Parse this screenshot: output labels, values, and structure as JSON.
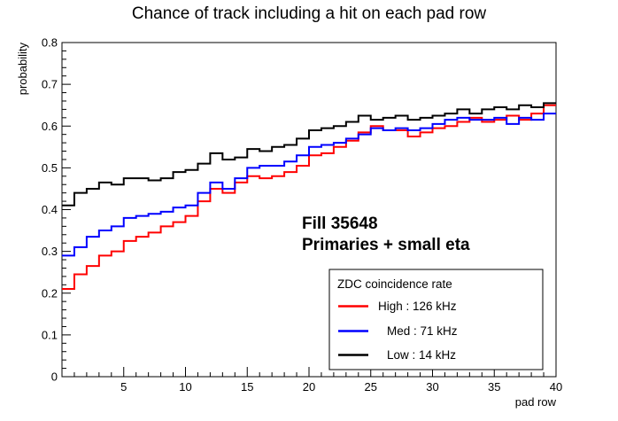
{
  "chart_data": {
    "type": "line",
    "title": "Chance of track including a hit on each pad row",
    "xlabel": "pad row",
    "ylabel": "probability",
    "xlim": [
      0,
      40
    ],
    "ylim": [
      0,
      0.8
    ],
    "x_ticks": [
      5,
      10,
      15,
      20,
      25,
      30,
      35,
      40
    ],
    "y_ticks": [
      0,
      0.1,
      0.2,
      0.3,
      0.4,
      0.5,
      0.6,
      0.7,
      0.8
    ],
    "y_tick_labels": [
      "0",
      "0.1",
      "0.2",
      "0.3",
      "0.4",
      "0.5",
      "0.6",
      "0.7",
      "0.8"
    ],
    "grid": false,
    "step": true,
    "x": [
      1,
      2,
      3,
      4,
      5,
      6,
      7,
      8,
      9,
      10,
      11,
      12,
      13,
      14,
      15,
      16,
      17,
      18,
      19,
      20,
      21,
      22,
      23,
      24,
      25,
      26,
      27,
      28,
      29,
      30,
      31,
      32,
      33,
      34,
      35,
      36,
      37,
      38,
      39,
      40
    ],
    "series": [
      {
        "name": "High : 126 kHz",
        "color": "#ff0000",
        "values": [
          0.21,
          0.245,
          0.265,
          0.29,
          0.3,
          0.325,
          0.335,
          0.345,
          0.36,
          0.37,
          0.385,
          0.42,
          0.45,
          0.44,
          0.465,
          0.48,
          0.475,
          0.48,
          0.49,
          0.505,
          0.53,
          0.535,
          0.55,
          0.565,
          0.585,
          0.6,
          0.59,
          0.59,
          0.575,
          0.585,
          0.595,
          0.6,
          0.61,
          0.62,
          0.61,
          0.615,
          0.625,
          0.615,
          0.63,
          0.65
        ]
      },
      {
        "name": "Med : 71 kHz",
        "color": "#0000ff",
        "values": [
          0.29,
          0.31,
          0.335,
          0.35,
          0.36,
          0.38,
          0.385,
          0.39,
          0.395,
          0.405,
          0.41,
          0.44,
          0.465,
          0.45,
          0.475,
          0.5,
          0.505,
          0.505,
          0.515,
          0.53,
          0.55,
          0.555,
          0.56,
          0.57,
          0.58,
          0.595,
          0.59,
          0.595,
          0.59,
          0.595,
          0.605,
          0.615,
          0.62,
          0.615,
          0.615,
          0.62,
          0.605,
          0.62,
          0.615,
          0.63
        ]
      },
      {
        "name": "Low : 14 kHz",
        "color": "#000000",
        "values": [
          0.41,
          0.44,
          0.45,
          0.465,
          0.46,
          0.475,
          0.475,
          0.47,
          0.475,
          0.49,
          0.495,
          0.51,
          0.535,
          0.52,
          0.525,
          0.545,
          0.54,
          0.55,
          0.555,
          0.57,
          0.59,
          0.595,
          0.6,
          0.61,
          0.625,
          0.615,
          0.62,
          0.625,
          0.615,
          0.62,
          0.625,
          0.63,
          0.64,
          0.63,
          0.64,
          0.645,
          0.64,
          0.65,
          0.645,
          0.655
        ]
      }
    ],
    "annotations": [
      "Fill 35648",
      "Primaries + small eta"
    ],
    "legend": {
      "title": "ZDC coincidence rate",
      "placement": "bottom-right"
    }
  }
}
